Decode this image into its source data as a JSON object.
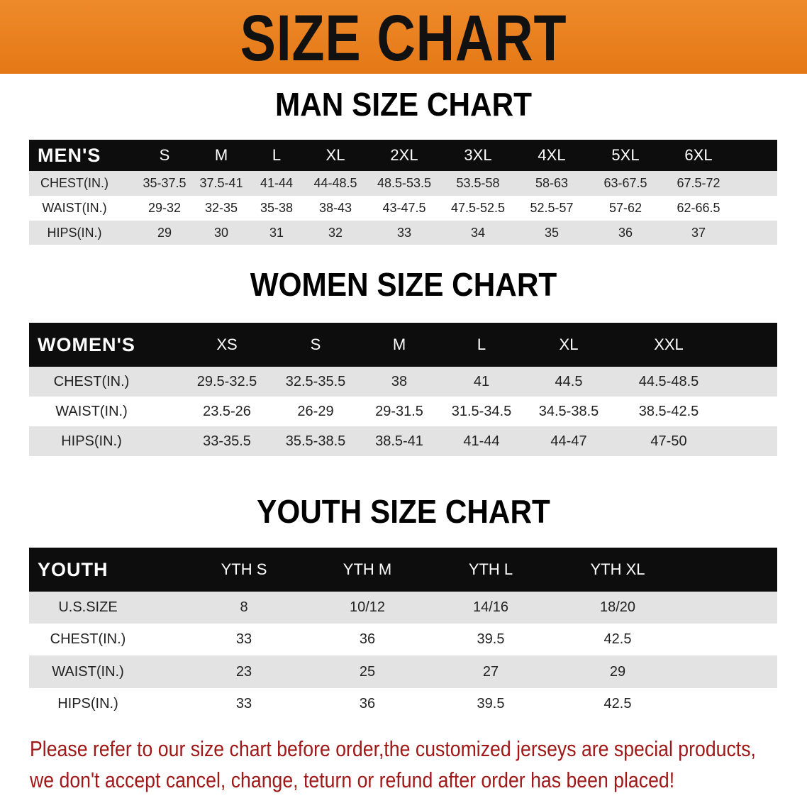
{
  "banner": {
    "title": "SIZE CHART",
    "color": "#e87a1e"
  },
  "men": {
    "title": "MAN SIZE CHART",
    "header": [
      "MEN'S",
      "S",
      "M",
      "L",
      "XL",
      "2XL",
      "3XL",
      "4XL",
      "5XL",
      "6XL"
    ],
    "rows": [
      [
        "CHEST(IN.)",
        "35-37.5",
        "37.5-41",
        "41-44",
        "44-48.5",
        "48.5-53.5",
        "53.5-58",
        "58-63",
        "63-67.5",
        "67.5-72"
      ],
      [
        "WAIST(IN.)",
        "29-32",
        "32-35",
        "35-38",
        "38-43",
        "43-47.5",
        "47.5-52.5",
        "52.5-57",
        "57-62",
        "62-66.5"
      ],
      [
        "HIPS(IN.)",
        "29",
        "30",
        "31",
        "32",
        "33",
        "34",
        "35",
        "36",
        "37"
      ]
    ]
  },
  "women": {
    "title": "WOMEN SIZE CHART",
    "header": [
      "WOMEN'S",
      "XS",
      "S",
      "M",
      "L",
      "XL",
      "XXL"
    ],
    "rows": [
      [
        "CHEST(IN.)",
        "29.5-32.5",
        "32.5-35.5",
        "38",
        "41",
        "44.5",
        "44.5-48.5"
      ],
      [
        "WAIST(IN.)",
        "23.5-26",
        "26-29",
        "29-31.5",
        "31.5-34.5",
        "34.5-38.5",
        "38.5-42.5"
      ],
      [
        "HIPS(IN.)",
        "33-35.5",
        "35.5-38.5",
        "38.5-41",
        "41-44",
        "44-47",
        "47-50"
      ]
    ]
  },
  "youth": {
    "title": "YOUTH SIZE CHART",
    "header": [
      "YOUTH",
      "YTH S",
      "YTH M",
      "YTH L",
      "YTH XL"
    ],
    "rows": [
      [
        "U.S.SIZE",
        "8",
        "10/12",
        "14/16",
        "18/20"
      ],
      [
        "CHEST(IN.)",
        "33",
        "36",
        "39.5",
        "42.5"
      ],
      [
        "WAIST(IN.)",
        "23",
        "25",
        "27",
        "29"
      ],
      [
        "HIPS(IN.)",
        "33",
        "36",
        "39.5",
        "42.5"
      ]
    ]
  },
  "notice": {
    "line1": "Please refer to our size chart before order,the customized jerseys are special products,",
    "line2": "we don't accept cancel, change, teturn or refund after order has been placed!",
    "color": "#a01818"
  }
}
